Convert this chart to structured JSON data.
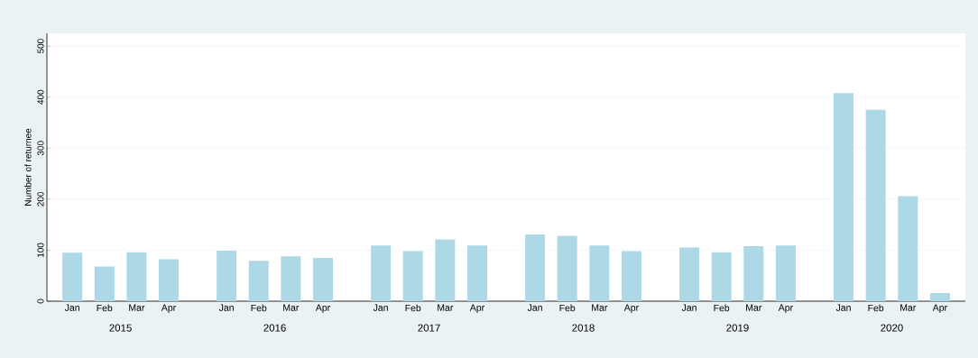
{
  "chart_data": {
    "type": "bar",
    "ylabel": "Number of returnee",
    "categories": [
      "Jan",
      "Feb",
      "Mar",
      "Apr",
      "Jan",
      "Feb",
      "Mar",
      "Apr",
      "Jan",
      "Feb",
      "Mar",
      "Apr",
      "Jan",
      "Feb",
      "Mar",
      "Apr",
      "Jan",
      "Feb",
      "Mar",
      "Apr",
      "Jan",
      "Feb",
      "Mar",
      "Apr"
    ],
    "values": [
      95,
      68,
      96,
      82,
      99,
      79,
      88,
      85,
      109,
      98,
      121,
      109,
      131,
      128,
      109,
      98,
      105,
      96,
      108,
      109,
      408,
      375,
      206,
      16
    ],
    "color": "#add8e6",
    "ylim": [
      0,
      525
    ],
    "yticks": [
      0,
      100,
      200,
      300,
      400,
      500
    ],
    "grid": "y",
    "annotations": [
      "2015",
      "2016",
      "2017",
      "2018",
      "2019",
      "2020"
    ]
  }
}
